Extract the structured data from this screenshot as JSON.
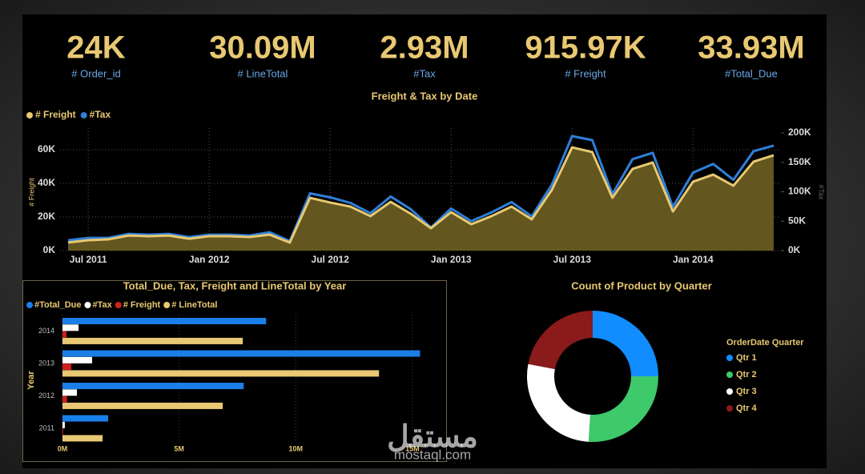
{
  "kpis": [
    {
      "value": "24K",
      "label": "# Order_id"
    },
    {
      "value": "30.09M",
      "label": "# LineTotal"
    },
    {
      "value": "2.93M",
      "label": "#Tax"
    },
    {
      "value": "915.97K",
      "label": "# Freight"
    },
    {
      "value": "33.93M",
      "label": "#Total_Due"
    }
  ],
  "chart_data": [
    {
      "type": "line",
      "title": "Freight & Tax by Date",
      "x": [
        "2011-06",
        "2011-07",
        "2011-08",
        "2011-09",
        "2011-10",
        "2011-11",
        "2011-12",
        "2012-01",
        "2012-02",
        "2012-03",
        "2012-04",
        "2012-05",
        "2012-06",
        "2012-07",
        "2012-08",
        "2012-09",
        "2012-10",
        "2012-11",
        "2012-12",
        "2013-01",
        "2013-02",
        "2013-03",
        "2013-04",
        "2013-05",
        "2013-06",
        "2013-07",
        "2013-08",
        "2013-09",
        "2013-10",
        "2013-11",
        "2013-12",
        "2014-01",
        "2014-02",
        "2014-03",
        "2014-04",
        "2014-05"
      ],
      "xlim": [
        "2011-06",
        "2014-05"
      ],
      "xticks": [
        {
          "value": "2011-07",
          "label": "Jul 2011"
        },
        {
          "value": "2012-01",
          "label": "Jan 2012"
        },
        {
          "value": "2012-07",
          "label": "Jul 2012"
        },
        {
          "value": "2013-01",
          "label": "Jan 2013"
        },
        {
          "value": "2013-07",
          "label": "Jul 2013"
        },
        {
          "value": "2014-01",
          "label": "Jan 2014"
        }
      ],
      "ylabel": "# Freight",
      "y2label": "#Tax",
      "ylim": [
        0,
        70000
      ],
      "yticks": [
        {
          "value": 0,
          "label": "0K"
        },
        {
          "value": 20000,
          "label": "20K"
        },
        {
          "value": 40000,
          "label": "40K"
        },
        {
          "value": 60000,
          "label": "60K"
        }
      ],
      "y2lim": [
        0,
        200000
      ],
      "y2ticks": [
        {
          "value": 0,
          "label": "0K"
        },
        {
          "value": 50000,
          "label": "50K"
        },
        {
          "value": 100000,
          "label": "100K"
        },
        {
          "value": 150000,
          "label": "150K"
        },
        {
          "value": 200000,
          "label": "200K"
        }
      ],
      "grid": true,
      "series": [
        {
          "name": "# Freight",
          "color": "#e8c872",
          "area": true,
          "values": [
            4800,
            6200,
            6700,
            9000,
            8600,
            9000,
            7100,
            8600,
            8600,
            8100,
            9500,
            4800,
            31400,
            28600,
            26200,
            20500,
            29000,
            21900,
            13300,
            22900,
            15700,
            20500,
            26200,
            18600,
            36200,
            61400,
            58600,
            31400,
            48600,
            52400,
            23300,
            41000,
            45200,
            38600,
            52900,
            56700
          ]
        },
        {
          "name": "#Tax",
          "color": "#2f7fd8",
          "axis": "y2",
          "values": [
            17600,
            21600,
            21600,
            28400,
            27000,
            28400,
            23000,
            27000,
            27000,
            25700,
            31100,
            16200,
            97300,
            90500,
            81100,
            63500,
            91900,
            70300,
            39200,
            71600,
            50000,
            64900,
            82400,
            58100,
            112200,
            194600,
            187800,
            95900,
            155400,
            166200,
            74300,
            132400,
            147300,
            120300,
            168900,
            178400
          ]
        }
      ]
    },
    {
      "type": "hbar",
      "title": "Total_Due, Tax, Freight and LineTotal by Year",
      "categories": [
        "2014",
        "2013",
        "2012",
        "2011"
      ],
      "ylabel": "Year",
      "xlim": [
        0,
        16000000
      ],
      "xticks": [
        {
          "value": 0,
          "label": "0M"
        },
        {
          "value": 5000000,
          "label": "5M"
        },
        {
          "value": 10000000,
          "label": "10M"
        },
        {
          "value": 15000000,
          "label": "15M"
        }
      ],
      "series": [
        {
          "name": "#Total_Due",
          "color": "#1a7fe8",
          "values": [
            8730000,
            15330000,
            7770000,
            1960000
          ]
        },
        {
          "name": "#Tax",
          "color": "#ffffff",
          "values": [
            690000,
            1270000,
            620000,
            100000
          ]
        },
        {
          "name": "# Freight",
          "color": "#d0201c",
          "values": [
            170000,
            380000,
            190000,
            30000
          ]
        },
        {
          "name": "# LineTotal",
          "color": "#e8c872",
          "values": [
            7730000,
            13570000,
            6870000,
            1720000
          ]
        }
      ]
    },
    {
      "type": "donut",
      "title": "Count of Product by Quarter",
      "legend_title": "OrderDate Quarter",
      "categories": [
        "Qtr 1",
        "Qtr 2",
        "Qtr 3",
        "Qtr 4"
      ],
      "colors": [
        "#118dff",
        "#3ec96a",
        "#ffffff",
        "#8b1a1a"
      ],
      "values": [
        25,
        26,
        27,
        22
      ]
    }
  ],
  "watermark": {
    "arabic": "مستقل",
    "latin": "mostaql.com"
  }
}
